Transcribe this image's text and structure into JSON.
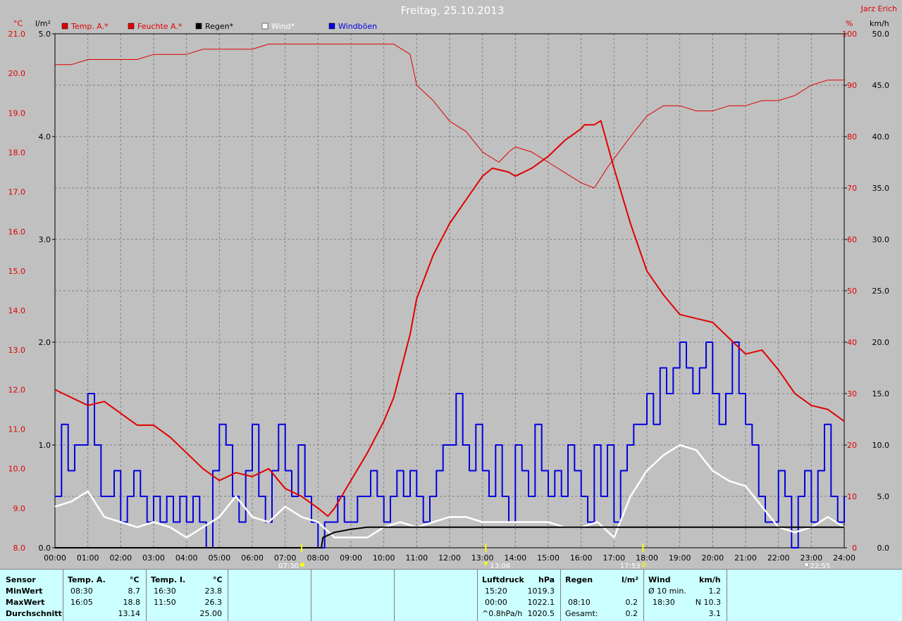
{
  "header": {
    "title": "Freitag, 25.10.2013",
    "station": "Jarz Erich",
    "unit_temp": "°C",
    "unit_rain": "l/m²",
    "unit_hum": "%",
    "unit_wind": "km/h"
  },
  "legend": [
    {
      "label": "Temp. A.*",
      "color": "#e00000"
    },
    {
      "label": "Feuchte A.*",
      "color": "#e00000"
    },
    {
      "label": "Regen*",
      "color": "#000000"
    },
    {
      "label": "Wind*",
      "color": "#ffffff"
    },
    {
      "label": "Windböen",
      "color": "#0000e0"
    }
  ],
  "markers": {
    "sunrise": "07:30",
    "pressure_time": "13:06",
    "sunset": "17:53",
    "moon": "22:55"
  },
  "chart_data": {
    "type": "line",
    "title": "Freitag, 25.10.2013",
    "x_ticks": [
      "00:00",
      "01:00",
      "02:00",
      "03:00",
      "04:00",
      "05:00",
      "06:00",
      "07:00",
      "08:00",
      "09:00",
      "10:00",
      "11:00",
      "12:00",
      "13:00",
      "14:00",
      "15:00",
      "16:00",
      "17:00",
      "18:00",
      "19:00",
      "20:00",
      "21:00",
      "22:00",
      "23:00",
      "24:00"
    ],
    "axes": {
      "temp": {
        "label": "°C",
        "min": 8.0,
        "max": 21.0,
        "ticks": [
          "21.0",
          "20.0",
          "19.0",
          "18.0",
          "17.0",
          "16.0",
          "15.0",
          "14.0",
          "13.0",
          "12.0",
          "11.0",
          "10.0",
          "9.0",
          "8.0"
        ]
      },
      "rain": {
        "label": "l/m²",
        "min": 0.0,
        "max": 5.0,
        "ticks": [
          "5.0",
          "4.0",
          "3.0",
          "2.0",
          "1.0",
          "0.0"
        ]
      },
      "humidity": {
        "label": "%",
        "min": 0,
        "max": 100,
        "ticks": [
          "100",
          "90",
          "80",
          "70",
          "60",
          "50",
          "40",
          "30",
          "20",
          "10",
          "0"
        ]
      },
      "wind": {
        "label": "km/h",
        "min": 0.0,
        "max": 50.0,
        "ticks": [
          "50.0",
          "45.0",
          "40.0",
          "35.0",
          "30.0",
          "25.0",
          "20.0",
          "15.0",
          "10.0",
          "5.0",
          "0.0"
        ]
      }
    },
    "grid": true,
    "series": [
      {
        "name": "Temp. A.*",
        "axis": "temp",
        "color": "#e00000",
        "x": [
          0,
          0.5,
          1,
          1.5,
          2,
          2.5,
          3,
          3.5,
          4,
          4.5,
          5,
          5.5,
          6,
          6.5,
          7,
          7.5,
          8,
          8.3,
          8.5,
          9,
          9.5,
          10,
          10.3,
          10.8,
          11,
          11.5,
          12,
          12.5,
          13,
          13.3,
          13.8,
          14,
          14.5,
          15,
          15.5,
          16,
          16.1,
          16.4,
          16.6,
          17,
          17.5,
          18,
          18.5,
          19,
          19.5,
          20,
          20.5,
          21,
          21.5,
          22,
          22.5,
          23,
          23.5,
          24
        ],
        "y": [
          12.0,
          11.8,
          11.6,
          11.7,
          11.4,
          11.1,
          11.1,
          10.8,
          10.4,
          10.0,
          9.7,
          9.9,
          9.8,
          10.0,
          9.5,
          9.3,
          9.0,
          8.8,
          9.0,
          9.7,
          10.4,
          11.2,
          11.8,
          13.4,
          14.3,
          15.4,
          16.2,
          16.8,
          17.4,
          17.6,
          17.5,
          17.4,
          17.6,
          17.9,
          18.3,
          18.6,
          18.7,
          18.7,
          18.8,
          17.6,
          16.2,
          15.0,
          14.4,
          13.9,
          13.8,
          13.7,
          13.3,
          12.9,
          13.0,
          12.5,
          11.9,
          11.6,
          11.5,
          11.2
        ]
      },
      {
        "name": "Feuchte A.*",
        "axis": "humidity",
        "color": "#e00000",
        "x": [
          0,
          0.5,
          1,
          1.5,
          2,
          2.5,
          3,
          3.5,
          4,
          4.5,
          5,
          5.5,
          6,
          6.5,
          7,
          7.5,
          8,
          8.5,
          9,
          9.5,
          10,
          10.3,
          10.8,
          11,
          11.5,
          12,
          12.5,
          13,
          13.5,
          13.8,
          14,
          14.5,
          15,
          15.5,
          16,
          16.4,
          16.8,
          17.5,
          18,
          18.5,
          19,
          19.5,
          20,
          20.5,
          21,
          21.5,
          22,
          22.5,
          23,
          23.5,
          24
        ],
        "y": [
          94,
          94,
          95,
          95,
          95,
          95,
          96,
          96,
          96,
          97,
          97,
          97,
          97,
          98,
          98,
          98,
          98,
          98,
          98,
          98,
          98,
          98,
          96,
          90,
          87,
          83,
          81,
          77,
          75,
          77,
          78,
          77,
          75,
          73,
          71,
          70,
          74,
          80,
          84,
          86,
          86,
          85,
          85,
          86,
          86,
          87,
          87,
          88,
          90,
          91,
          91
        ]
      },
      {
        "name": "Regen*",
        "axis": "rain",
        "color": "#000000",
        "x": [
          0,
          8.1,
          8.15,
          8.5,
          9,
          9.5,
          10,
          12,
          14,
          16,
          18,
          20,
          22,
          24
        ],
        "y": [
          0,
          0,
          0.1,
          0.15,
          0.18,
          0.2,
          0.2,
          0.2,
          0.2,
          0.2,
          0.2,
          0.2,
          0.2,
          0.2
        ]
      },
      {
        "name": "Wind*",
        "axis": "wind",
        "color": "#ffffff",
        "x": [
          0,
          0.5,
          1,
          1.5,
          2,
          2.5,
          3,
          3.5,
          4,
          4.5,
          5,
          5.5,
          6,
          6.5,
          7,
          7.5,
          8,
          8.5,
          9,
          9.5,
          10,
          10.5,
          11,
          11.5,
          12,
          12.5,
          13,
          13.5,
          14,
          14.5,
          15,
          15.5,
          16,
          16.5,
          17,
          17.5,
          18,
          18.5,
          19,
          19.5,
          20,
          20.5,
          21,
          21.5,
          22,
          22.5,
          23,
          23.5,
          24
        ],
        "y": [
          4,
          4.5,
          5.5,
          3,
          2.5,
          2,
          2.5,
          2,
          1,
          2,
          3,
          5,
          3,
          2.5,
          4,
          3,
          2.5,
          1,
          1,
          1,
          2,
          2.5,
          2,
          2.5,
          3,
          3,
          2.5,
          2.5,
          2.5,
          2.5,
          2.5,
          2,
          2,
          2.5,
          1,
          5,
          7.5,
          9,
          10,
          9.5,
          7.5,
          6.5,
          6,
          4,
          2,
          1.5,
          2,
          3,
          2
        ]
      },
      {
        "name": "Windböen",
        "axis": "wind",
        "color": "#0000e0",
        "x": [
          0,
          0.2,
          0.4,
          0.6,
          0.8,
          1,
          1.2,
          1.4,
          1.6,
          1.8,
          2,
          2.2,
          2.4,
          2.6,
          2.8,
          3,
          3.2,
          3.4,
          3.6,
          3.8,
          4,
          4.2,
          4.4,
          4.6,
          4.8,
          5,
          5.2,
          5.4,
          5.6,
          5.8,
          6,
          6.2,
          6.4,
          6.6,
          6.8,
          7,
          7.2,
          7.4,
          7.6,
          7.8,
          8,
          8.2,
          8.4,
          8.6,
          8.8,
          9,
          9.2,
          9.4,
          9.6,
          9.8,
          10,
          10.2,
          10.4,
          10.6,
          10.8,
          11,
          11.2,
          11.4,
          11.6,
          11.8,
          12,
          12.2,
          12.4,
          12.6,
          12.8,
          13,
          13.2,
          13.4,
          13.6,
          13.8,
          14,
          14.2,
          14.4,
          14.6,
          14.8,
          15,
          15.2,
          15.4,
          15.6,
          15.8,
          16,
          16.2,
          16.4,
          16.6,
          16.8,
          17,
          17.2,
          17.4,
          17.6,
          17.8,
          18,
          18.2,
          18.4,
          18.6,
          18.8,
          19,
          19.2,
          19.4,
          19.6,
          19.8,
          20,
          20.2,
          20.4,
          20.6,
          20.8,
          21,
          21.2,
          21.4,
          21.6,
          21.8,
          22,
          22.2,
          22.4,
          22.6,
          22.8,
          23,
          23.2,
          23.4,
          23.6,
          23.8,
          24
        ],
        "y": [
          5,
          12,
          7.5,
          10,
          10,
          15,
          10,
          5,
          5,
          7.5,
          2.5,
          5,
          7.5,
          5,
          2.5,
          5,
          2.5,
          5,
          2.5,
          5,
          2.5,
          5,
          2.5,
          0,
          7.5,
          12,
          10,
          5,
          2.5,
          7.5,
          12,
          5,
          2.5,
          7.5,
          12,
          7.5,
          5,
          10,
          5,
          2.5,
          0,
          2.5,
          2.5,
          5,
          2.5,
          2.5,
          5,
          5,
          7.5,
          5,
          2.5,
          5,
          7.5,
          5,
          7.5,
          5,
          2.5,
          5,
          7.5,
          10,
          10,
          15,
          10,
          7.5,
          12,
          7.5,
          5,
          10,
          5,
          2.5,
          10,
          7.5,
          5,
          12,
          7.5,
          5,
          7.5,
          5,
          10,
          7.5,
          5,
          2.5,
          10,
          5,
          10,
          2.5,
          7.5,
          10,
          12,
          12,
          15,
          12,
          17.5,
          15,
          17.5,
          20,
          17.5,
          15,
          17.5,
          20,
          15,
          12,
          15,
          20,
          15,
          12,
          10,
          5,
          2.5,
          2.5,
          7.5,
          5,
          0,
          5,
          7.5,
          2.5,
          7.5,
          12,
          5,
          2.5,
          5
        ]
      }
    ]
  },
  "stats": {
    "sensor": {
      "header": "Sensor",
      "rows": [
        "MinWert",
        "MaxWert",
        "Durchschnitt"
      ]
    },
    "temp_a": {
      "header": "Temp. A.",
      "unit": "°C",
      "rows": [
        [
          "08:30",
          "8.7"
        ],
        [
          "16:05",
          "18.8"
        ],
        [
          "",
          "13.14"
        ]
      ]
    },
    "temp_i": {
      "header": "Temp. I.",
      "unit": "°C",
      "rows": [
        [
          "16:30",
          "23.8"
        ],
        [
          "11:50",
          "26.3"
        ],
        [
          "",
          "25.00"
        ]
      ]
    },
    "pressure": {
      "header": "Luftdruck",
      "unit": "hPa",
      "rows": [
        [
          "15:20",
          "1019.3"
        ],
        [
          "00:00",
          "1022.1"
        ],
        [
          "^0.8hPa/h",
          "1020.5"
        ]
      ]
    },
    "rain": {
      "header": "Regen",
      "unit": "l/m²",
      "rows": [
        [
          "",
          ""
        ],
        [
          "08:10",
          "0.2"
        ],
        [
          "Gesamt:",
          "0.2"
        ]
      ]
    },
    "wind": {
      "header": "Wind",
      "unit": "km/h",
      "rows": [
        [
          "Ø 10 min.",
          "1.2"
        ],
        [
          "18:30",
          "N 10.3"
        ],
        [
          "",
          "3.1"
        ]
      ]
    }
  }
}
